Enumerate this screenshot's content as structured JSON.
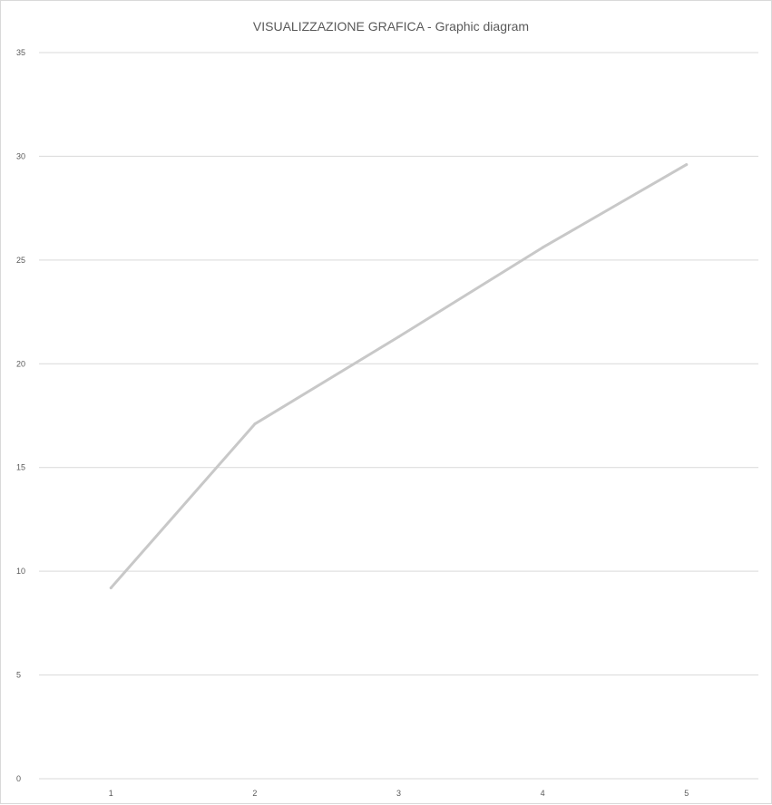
{
  "chart_data": {
    "type": "line",
    "title": "VISUALIZZAZIONE GRAFICA - Graphic diagram",
    "xlabel": "",
    "ylabel": "",
    "categories": [
      "1",
      "2",
      "3",
      "4",
      "5"
    ],
    "series": [
      {
        "values": [
          9.2,
          17.1,
          21.3,
          25.6,
          29.6
        ],
        "color": "#c8c8c8"
      }
    ],
    "ylim": [
      0,
      35
    ],
    "yticks": [
      "0",
      "5",
      "10",
      "15",
      "20",
      "25",
      "30",
      "35"
    ],
    "grid": true,
    "legend": "none"
  }
}
